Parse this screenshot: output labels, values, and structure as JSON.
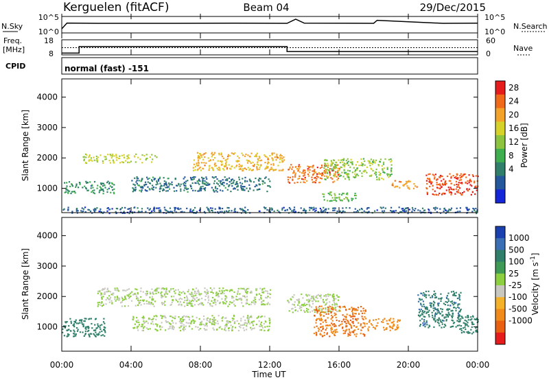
{
  "header": {
    "station": "Kerguelen (fitACF)",
    "beam": "Beam 04",
    "date": "29/Dec/2015"
  },
  "noise_panel": {
    "left_label": "N.Sky",
    "right_label": "N.Search",
    "left_ticks": [
      "10^5",
      "10^0"
    ],
    "right_ticks": [
      "10^5",
      "10^0"
    ]
  },
  "freq_panel": {
    "left_label_lines": [
      "Freq.",
      "[MHz]"
    ],
    "right_label": "Nave",
    "left_ticks": [
      "18",
      "8"
    ],
    "right_ticks": [
      "60",
      "0"
    ]
  },
  "cpid": {
    "label": "CPID",
    "value": "normal (fast) -151"
  },
  "x_axis": {
    "title": "Time UT",
    "ticks": [
      "00:00",
      "04:00",
      "08:00",
      "12:00",
      "16:00",
      "20:00",
      "00:00"
    ]
  },
  "power_colorbar": {
    "label": "Power [dB]",
    "ticks": [
      "28",
      "24",
      "20",
      "16",
      "12",
      "8",
      "4"
    ],
    "colors": [
      "#e61b1b",
      "#f06a1a",
      "#f3a22a",
      "#d7d22a",
      "#8cc43f",
      "#3fae4f",
      "#2f7f6a",
      "#25579c",
      "#1426d8"
    ]
  },
  "velocity_colorbar": {
    "label": "Velocity [m s^-1]",
    "ticks": [
      "1000",
      "500",
      "100",
      "25",
      "-25",
      "-100",
      "-500",
      "-1000"
    ],
    "colors": [
      "#1a3fae",
      "#3b6fb5",
      "#2f7f6a",
      "#3f9a55",
      "#8ccf3f",
      "#c8c8c0",
      "#f3b22a",
      "#f08a1a",
      "#e86010",
      "#e61b1b"
    ]
  },
  "chart_data": [
    {
      "type": "line",
      "title": "N.Sky / N.Search",
      "x_unit": "hours UT",
      "xlim": [
        0,
        24
      ],
      "ylim": [
        0,
        1
      ],
      "series": [
        {
          "name": "N.Sky",
          "x": [
            0,
            0.3,
            2,
            6,
            10,
            13,
            13.5,
            14,
            18,
            18.2,
            22,
            24
          ],
          "values": [
            0.2,
            0.62,
            0.6,
            0.6,
            0.61,
            0.6,
            0.9,
            0.61,
            0.6,
            0.82,
            0.6,
            0.61
          ]
        }
      ]
    },
    {
      "type": "line",
      "title": "Freq. [MHz] / Nave",
      "x_unit": "hours UT",
      "xlim": [
        0,
        24
      ],
      "ylim": [
        8,
        18
      ],
      "series": [
        {
          "name": "Freq.",
          "x": [
            0,
            1,
            1,
            13,
            13,
            24
          ],
          "values": [
            9.2,
            9.2,
            13.5,
            13.5,
            10.2,
            10.2
          ]
        },
        {
          "name": "Nave",
          "x": [
            0,
            24
          ],
          "values": [
            12.8,
            12.8
          ]
        }
      ]
    },
    {
      "type": "heatmap",
      "title": "Power [dB]",
      "xlabel": "Time UT",
      "ylabel": "Slant Range [km]",
      "xlim": [
        0,
        24
      ],
      "ylim": [
        200,
        4600
      ],
      "yticks": [
        1000,
        2000,
        3000,
        4000
      ],
      "bands": [
        {
          "x": [
            1.2,
            5.5
          ],
          "y": [
            1850,
            2150
          ],
          "value": 18
        },
        {
          "x": [
            7.5,
            12.8
          ],
          "y": [
            1600,
            2200
          ],
          "value": 22
        },
        {
          "x": [
            0,
            3
          ],
          "y": [
            850,
            1250
          ],
          "value": 10
        },
        {
          "x": [
            4,
            12
          ],
          "y": [
            900,
            1400
          ],
          "value": 8
        },
        {
          "x": [
            13,
            16
          ],
          "y": [
            1200,
            1800
          ],
          "value": 26
        },
        {
          "x": [
            15,
            19
          ],
          "y": [
            1300,
            2000
          ],
          "value": 16
        },
        {
          "x": [
            19,
            20.5
          ],
          "y": [
            1000,
            1300
          ],
          "value": 24
        },
        {
          "x": [
            21,
            24
          ],
          "y": [
            800,
            1500
          ],
          "value": 28
        },
        {
          "x": [
            15,
            17
          ],
          "y": [
            600,
            900
          ],
          "value": 14
        },
        {
          "x": [
            0,
            24
          ],
          "y": [
            200,
            400
          ],
          "value": 6
        }
      ]
    },
    {
      "type": "heatmap",
      "title": "Velocity [m s^-1]",
      "xlabel": "Time UT",
      "ylabel": "Slant Range [km]",
      "xlim": [
        0,
        24
      ],
      "ylim": [
        200,
        4600
      ],
      "yticks": [
        1000,
        2000,
        3000,
        4000
      ],
      "bands": [
        {
          "x": [
            0,
            2.5
          ],
          "y": [
            700,
            1300
          ],
          "value": 100
        },
        {
          "x": [
            2,
            12
          ],
          "y": [
            1700,
            2300
          ],
          "value": 0
        },
        {
          "x": [
            4,
            12
          ],
          "y": [
            900,
            1400
          ],
          "value": 0
        },
        {
          "x": [
            13,
            16
          ],
          "y": [
            1500,
            2100
          ],
          "value": 0
        },
        {
          "x": [
            14.5,
            17.5
          ],
          "y": [
            700,
            1700
          ],
          "value": -300
        },
        {
          "x": [
            17.5,
            19.5
          ],
          "y": [
            900,
            1300
          ],
          "value": -150
        },
        {
          "x": [
            20.5,
            23
          ],
          "y": [
            1000,
            2200
          ],
          "value": 250
        },
        {
          "x": [
            22.8,
            24
          ],
          "y": [
            800,
            1400
          ],
          "value": 120
        }
      ]
    }
  ]
}
